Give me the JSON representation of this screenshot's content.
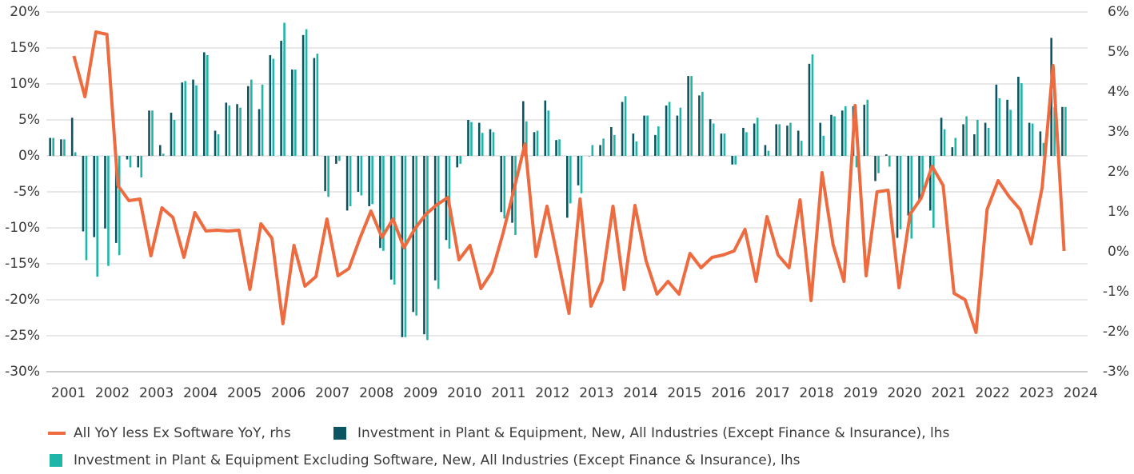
{
  "chart_data": {
    "type": "bar_line_combo",
    "categories": [
      null,
      "2001",
      null,
      null,
      null,
      "2002",
      null,
      null,
      null,
      "2003",
      null,
      null,
      null,
      "2004",
      null,
      null,
      null,
      "2005",
      null,
      null,
      null,
      "2006",
      null,
      null,
      null,
      "2007",
      null,
      null,
      null,
      "2008",
      null,
      null,
      null,
      "2009",
      null,
      null,
      null,
      "2010",
      null,
      null,
      null,
      "2011",
      null,
      null,
      null,
      "2012",
      null,
      null,
      null,
      "2013",
      null,
      null,
      null,
      "2014",
      null,
      null,
      null,
      "2015",
      null,
      null,
      null,
      "2016",
      null,
      null,
      null,
      "2017",
      null,
      null,
      null,
      "2018",
      null,
      null,
      null,
      "2019",
      null,
      null,
      null,
      "2020",
      null,
      null,
      null,
      "2021",
      null,
      null,
      null,
      "2022",
      null,
      null,
      null,
      "2023",
      null,
      null,
      null,
      "2024",
      null
    ],
    "series": [
      {
        "name": "All YoY less Ex Software YoY, rhs",
        "type": "line",
        "axis": "y2",
        "color": "#ee6a3f",
        "values": [
          null,
          null,
          4.9,
          3.88,
          5.5,
          5.44,
          1.66,
          1.28,
          1.32,
          -0.1,
          1.1,
          0.86,
          -0.14,
          0.98,
          0.52,
          0.54,
          0.52,
          0.54,
          -0.94,
          0.7,
          0.34,
          -1.8,
          0.16,
          -0.86,
          -0.62,
          0.82,
          -0.6,
          -0.42,
          0.34,
          1.02,
          0.36,
          0.82,
          0.1,
          0.58,
          0.94,
          1.18,
          1.36,
          -0.2,
          0.16,
          -0.92,
          -0.5,
          0.46,
          1.56,
          2.7,
          -0.12,
          1.14,
          -0.2,
          -1.54,
          1.32,
          -1.36,
          -0.74,
          1.14,
          -0.94,
          1.16,
          -0.22,
          -1.06,
          -0.74,
          -1.06,
          -0.04,
          -0.4,
          -0.14,
          -0.08,
          0.02,
          0.56,
          -0.74,
          0.88,
          -0.08,
          -0.4,
          1.3,
          -1.22,
          1.98,
          0.18,
          -0.74,
          3.66,
          -0.6,
          1.5,
          1.54,
          -0.9,
          0.94,
          1.34,
          2.14,
          1.66,
          -1.04,
          -1.2,
          -2.02,
          1.06,
          1.78,
          1.38,
          1.06,
          0.2,
          1.6,
          4.66,
          0.02,
          null,
          null
        ]
      },
      {
        "name": "Investment in Plant & Equipment, New, All Industries (Except Finance & Insurance), lhs",
        "type": "bar",
        "color": "#0b5563",
        "values": [
          2.5,
          2.3,
          5.3,
          -10.5,
          -11.3,
          -10.1,
          -12.1,
          -0.5,
          -1.6,
          6.3,
          1.5,
          6,
          10.2,
          10.6,
          14.4,
          3.5,
          7.4,
          7.2,
          9.7,
          6.5,
          14,
          16,
          12,
          16.8,
          13.6,
          -4.9,
          -1.1,
          -7.6,
          -5,
          -7,
          -12.8,
          -17.2,
          -25.2,
          -21.7,
          -24.8,
          -17.3,
          -11.7,
          -1.6,
          5,
          4.6,
          3.7,
          -7.8,
          -9.3,
          7.6,
          3.3,
          7.7,
          2.2,
          -8.6,
          -4.1,
          0,
          1.5,
          4,
          7.5,
          3.1,
          5.6,
          2.9,
          7,
          5.6,
          11.1,
          8.4,
          5.1,
          3.1,
          -1.2,
          3.9,
          4.5,
          1.5,
          4.4,
          4.2,
          3.5,
          12.8,
          4.6,
          5.7,
          6.3,
          6.9,
          7.1,
          -3.5,
          0.2,
          -11.4,
          -8.3,
          -6.1,
          -7.6,
          5.3,
          1.2,
          4.4,
          3,
          4.6,
          9.9,
          7.8,
          11,
          4.6,
          3.4,
          16.4,
          6.8,
          null,
          null
        ]
      },
      {
        "name": "Investment in Plant & Equipment Excluding Software, New, All Industries (Except Finance & Insurance), lhs",
        "type": "bar",
        "color": "#1fb5a8",
        "values": [
          2.5,
          2.3,
          0.5,
          -14.5,
          -16.8,
          -15.3,
          -13.8,
          -1.6,
          -3,
          6.3,
          0.3,
          5,
          10.4,
          9.8,
          14,
          3,
          7,
          6.7,
          10.6,
          9.9,
          13.5,
          18.5,
          12,
          17.6,
          14.2,
          -5.7,
          -0.7,
          -7,
          -5.5,
          -6.7,
          -13.2,
          -17.9,
          -25.2,
          -22.2,
          -25.6,
          -18.5,
          -12.9,
          -1.1,
          4.7,
          3.2,
          3.3,
          -8.7,
          -11,
          4.8,
          3.5,
          6.3,
          2.3,
          -6.6,
          -5.2,
          1.5,
          2.4,
          2.9,
          8.3,
          2,
          5.6,
          4.1,
          7.5,
          6.7,
          11.1,
          8.9,
          4.5,
          3.1,
          -1.2,
          3.3,
          5.3,
          0.7,
          4.4,
          4.6,
          2.1,
          14.1,
          2.8,
          5.5,
          6.9,
          -1.6,
          7.8,
          -2.4,
          -1.5,
          -10.2,
          -11.5,
          -5.6,
          -10,
          3.7,
          2.5,
          5.5,
          5,
          3.9,
          8,
          6.4,
          10.1,
          4.5,
          1.8,
          6.8,
          6.8,
          null,
          null
        ]
      }
    ],
    "ylim": [
      -30,
      20
    ],
    "yticks": [
      {
        "value": -30,
        "label": "-30%"
      },
      {
        "value": -25,
        "label": "-25%"
      },
      {
        "value": -20,
        "label": "-20%"
      },
      {
        "value": -15,
        "label": "-15%"
      },
      {
        "value": -10,
        "label": "-10%"
      },
      {
        "value": -5,
        "label": "-5%"
      },
      {
        "value": 0,
        "label": "0%"
      },
      {
        "value": 5,
        "label": "5%"
      },
      {
        "value": 10,
        "label": "10%"
      },
      {
        "value": 15,
        "label": "15%"
      },
      {
        "value": 20,
        "label": "20%"
      }
    ],
    "y2lim": [
      -3,
      6
    ],
    "y2ticks": [
      {
        "value": -3,
        "label": "-3%"
      },
      {
        "value": -2,
        "label": "-2%"
      },
      {
        "value": -1,
        "label": "-1%"
      },
      {
        "value": 0,
        "label": "0%"
      },
      {
        "value": 1,
        "label": "1%"
      },
      {
        "value": 2,
        "label": "2%"
      },
      {
        "value": 3,
        "label": "3%"
      },
      {
        "value": 4,
        "label": "4%"
      },
      {
        "value": 5,
        "label": "5%"
      },
      {
        "value": 6,
        "label": "6%"
      }
    ],
    "grid": true,
    "legend": "bottom"
  }
}
